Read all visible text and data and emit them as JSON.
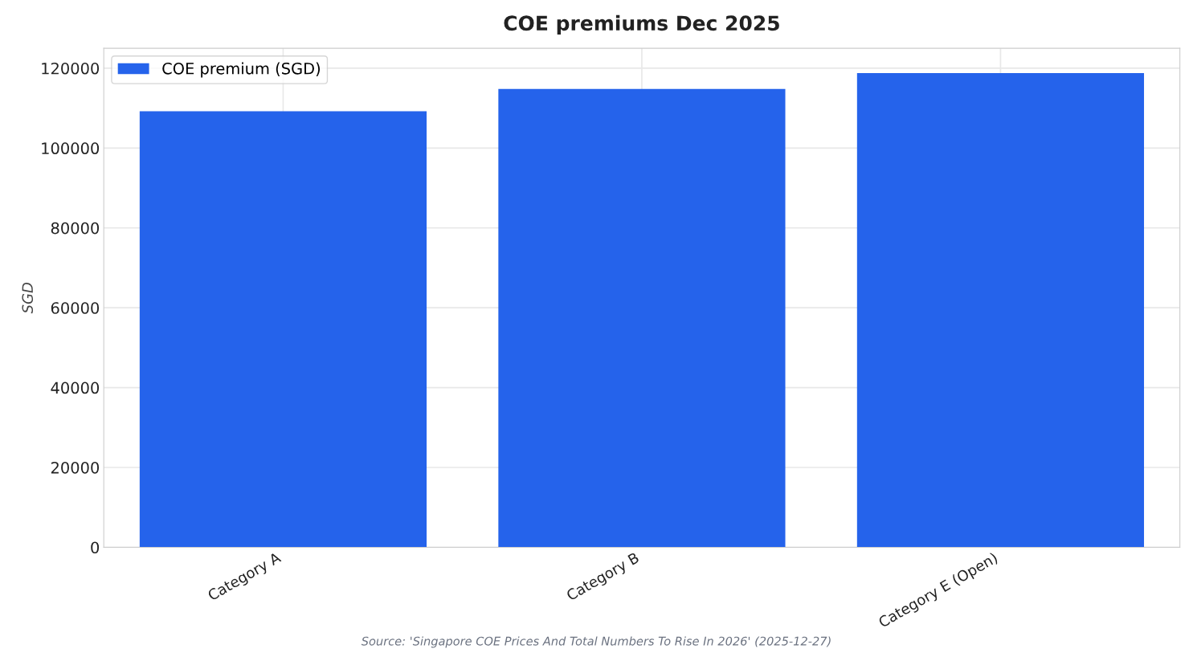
{
  "chart_data": {
    "type": "bar",
    "title": "COE premiums Dec 2025",
    "ylabel": "SGD",
    "categories": [
      "Category A",
      "Category B",
      "Category E (Open)"
    ],
    "series": [
      {
        "name": "COE premium (SGD)",
        "color": "#2563eb",
        "values": [
          109200,
          114800,
          118800
        ]
      }
    ],
    "ylim": [
      0,
      125000
    ],
    "yticks": [
      0,
      20000,
      40000,
      60000,
      80000,
      100000,
      120000
    ],
    "grid": true,
    "legend": "top left",
    "annotations": [
      "Source: 'Singapore COE Prices And Total Numbers To Rise In 2026' (2025-12-27)"
    ]
  }
}
